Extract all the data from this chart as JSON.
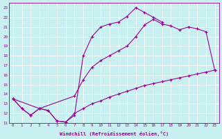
{
  "xlabel": "Windchill (Refroidissement éolien,°C)",
  "bg_color": "#c8f0f0",
  "line_color": "#990099",
  "grid_color": "#ffffff",
  "xlim": [
    -0.5,
    23.5
  ],
  "ylim": [
    11,
    23.5
  ],
  "xticks": [
    0,
    1,
    2,
    3,
    4,
    5,
    6,
    7,
    8,
    9,
    10,
    11,
    12,
    13,
    14,
    15,
    16,
    17,
    18,
    19,
    20,
    21,
    22,
    23
  ],
  "yticks": [
    11,
    12,
    13,
    14,
    15,
    16,
    17,
    18,
    19,
    20,
    21,
    22,
    23
  ],
  "curve1_x": [
    0,
    1,
    2,
    3,
    4,
    5,
    6,
    7,
    8,
    9,
    10,
    11,
    12,
    13,
    14,
    15,
    16,
    17
  ],
  "curve1_y": [
    13.5,
    12.5,
    11.8,
    12.5,
    12.3,
    11.2,
    11.1,
    11.8,
    18.0,
    20.0,
    21.0,
    21.3,
    21.5,
    22.1,
    23.0,
    22.5,
    22.0,
    21.5
  ],
  "curve2_x": [
    0,
    1,
    2,
    3,
    4,
    5,
    6,
    7,
    8,
    9,
    10,
    11,
    12,
    13,
    14,
    15,
    16,
    17,
    18,
    19,
    20,
    21,
    22,
    23
  ],
  "curve2_y": [
    13.5,
    12.5,
    11.8,
    12.5,
    12.3,
    11.2,
    11.1,
    12.0,
    12.5,
    13.0,
    13.3,
    13.7,
    14.0,
    14.3,
    14.6,
    14.9,
    15.1,
    15.3,
    15.5,
    15.7,
    15.9,
    16.1,
    16.3,
    16.5
  ],
  "curve3_x": [
    0,
    3,
    7,
    8,
    9,
    10,
    11,
    12,
    13,
    14,
    15,
    16,
    17,
    18,
    19,
    20,
    21,
    22,
    23
  ],
  "curve3_y": [
    13.5,
    12.5,
    13.8,
    15.5,
    16.8,
    17.5,
    18.0,
    18.5,
    19.0,
    20.0,
    21.2,
    21.8,
    21.3,
    21.1,
    20.7,
    21.0,
    20.8,
    20.5,
    16.5
  ]
}
